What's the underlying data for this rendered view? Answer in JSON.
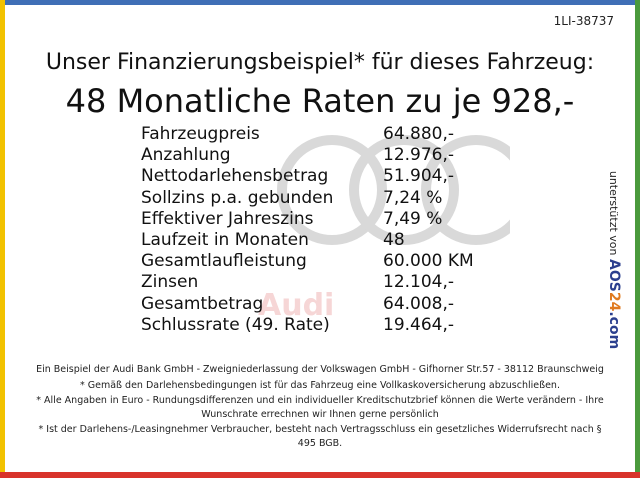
{
  "reference_id": "1LI-38737",
  "headline": "Unser Finanzierungsbeispiel* für dieses Fahrzeug:",
  "rate_line": "48 Monatliche Raten zu je 928,-",
  "finance_rows": [
    {
      "label": "Fahrzeugpreis",
      "value": "64.880,-"
    },
    {
      "label": "Anzahlung",
      "value": "12.976,-"
    },
    {
      "label": "Nettodarlehensbetrag",
      "value": "51.904,-"
    },
    {
      "label": "Sollzins p.a. gebunden",
      "value": "7,24 %"
    },
    {
      "label": "Effektiver Jahreszins",
      "value": "7,49 %"
    },
    {
      "label": "Laufzeit in Monaten",
      "value": "48"
    },
    {
      "label": "Gesamtlaufleistung",
      "value": "60.000 KM"
    },
    {
      "label": "Zinsen",
      "value": "12.104,-"
    },
    {
      "label": "Gesamtbetrag",
      "value": "64.008,-"
    },
    {
      "label": "Schlussrate (49. Rate)",
      "value": "19.464,-"
    }
  ],
  "watermark_text": "Audi",
  "side_note": {
    "prefix": "unterstützt von",
    "brand_part1": "AOS",
    "brand_part2": "24",
    "brand_part3": ".com"
  },
  "footnotes": [
    "Ein Beispiel der Audi Bank GmbH - Zweigniederlassung der Volkswagen GmbH - Gifhorner Str.57 - 38112 Braunschweig",
    "* Gemäß den Darlehensbedingungen ist für das Fahrzeug eine Vollkaskoversicherung abzuschließen.",
    "* Alle Angaben in Euro - Rundungsdifferenzen und ein individueller Kreditschutzbrief können die Werte verändern - Ihre Wunschrate errechnen wir Ihnen gerne persönlich",
    "* Ist der Darlehens-/Leasingnehmer Verbraucher, besteht nach Vertragsschluss ein gesetzliches Widerrufsrecht nach § 495 BGB."
  ],
  "colors": {
    "top_bar": "#3f6fb6",
    "left_bar": "#f2c200",
    "right_bar": "#4a9a3c",
    "bottom_bar": "#d8332b",
    "logo_rings": "#d9d9d9"
  }
}
